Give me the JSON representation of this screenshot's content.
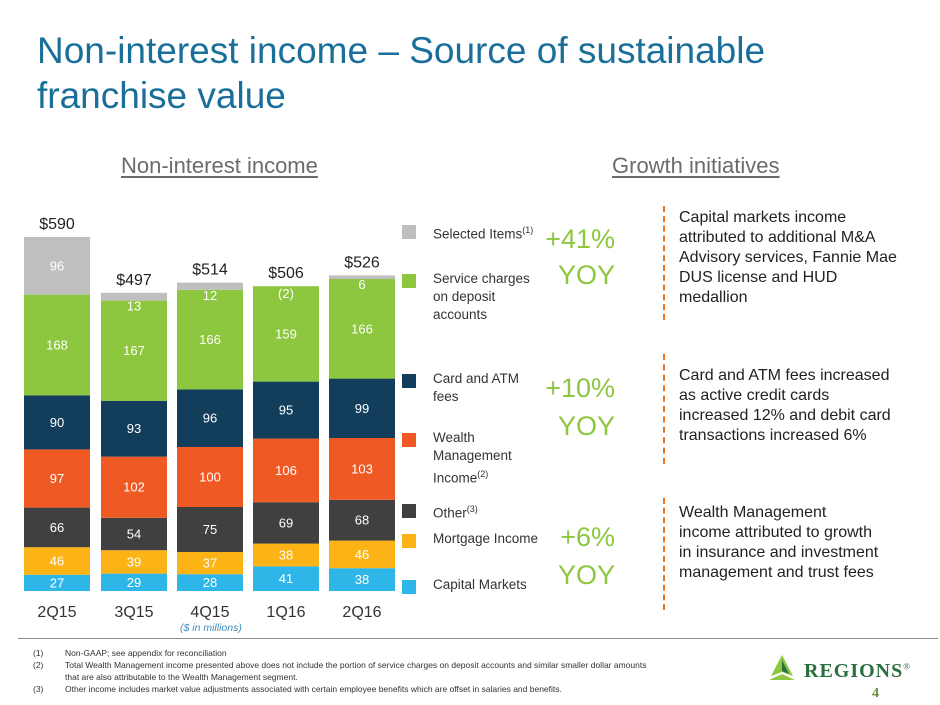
{
  "title": "Non-interest income – Source of sustainable franchise value",
  "left_heading": "Non-interest income",
  "right_heading": "Growth initiatives",
  "units_note": "($ in millions)",
  "legend": [
    {
      "label": "Selected Items",
      "sup": "(1)",
      "color": "#bfbfbf"
    },
    {
      "label": "Service charges on deposit accounts",
      "sup": "",
      "color": "#8dc63f"
    },
    {
      "label": "Card and ATM fees",
      "sup": "",
      "color": "#123e5c"
    },
    {
      "label": "Wealth Management Income",
      "sup": "(2)",
      "color": "#ef5a24"
    },
    {
      "label": "Other",
      "sup": "(3)",
      "color": "#404040"
    },
    {
      "label": "Mortgage Income",
      "sup": "",
      "color": "#fbb316"
    },
    {
      "label": "Capital Markets",
      "sup": "",
      "color": "#2fb6e8"
    }
  ],
  "chart_data": {
    "type": "bar",
    "stacked": true,
    "categories": [
      "2Q15",
      "3Q15",
      "4Q15",
      "1Q16",
      "2Q16"
    ],
    "totals": [
      "$590",
      "$497",
      "$514",
      "$506",
      "$526"
    ],
    "series": [
      {
        "name": "Capital Markets",
        "color": "#2fb6e8",
        "values": [
          27,
          29,
          28,
          41,
          38
        ],
        "labels": [
          "27",
          "29",
          "28",
          "41",
          "38"
        ]
      },
      {
        "name": "Mortgage Income",
        "color": "#fbb316",
        "values": [
          46,
          39,
          37,
          38,
          46
        ],
        "labels": [
          "46",
          "39",
          "37",
          "38",
          "46"
        ]
      },
      {
        "name": "Other",
        "color": "#404040",
        "values": [
          66,
          54,
          75,
          69,
          68
        ],
        "labels": [
          "66",
          "54",
          "75",
          "69",
          "68"
        ]
      },
      {
        "name": "Wealth Management Income",
        "color": "#ef5a24",
        "values": [
          97,
          102,
          100,
          106,
          103
        ],
        "labels": [
          "97",
          "102",
          "100",
          "106",
          "103"
        ]
      },
      {
        "name": "Card and ATM fees",
        "color": "#123e5c",
        "values": [
          90,
          93,
          96,
          95,
          99
        ],
        "labels": [
          "90",
          "93",
          "96",
          "95",
          "99"
        ]
      },
      {
        "name": "Service charges on deposit accounts",
        "color": "#8dc63f",
        "values": [
          168,
          167,
          166,
          159,
          166
        ],
        "labels": [
          "168",
          "167",
          "166",
          "159",
          "166"
        ]
      },
      {
        "name": "Selected Items",
        "color": "#bfbfbf",
        "values": [
          96,
          13,
          12,
          -2,
          6
        ],
        "labels": [
          "96",
          "13",
          "12",
          "(2)",
          "6"
        ]
      }
    ],
    "ylim": [
      0,
      600
    ]
  },
  "initiatives": [
    {
      "pct": "+41%",
      "yoy": "YOY",
      "text": "Capital markets income attributed to additional M&A Advisory services, Fannie Mae DUS license and HUD medallion"
    },
    {
      "pct": "+10%",
      "yoy": "YOY",
      "text": "Card and ATM fees increased as active credit cards increased 12% and debit card transactions increased 6%"
    },
    {
      "pct": "+6%",
      "yoy": "YOY",
      "text": "Wealth Management income attributed to growth in insurance and investment management and trust fees"
    }
  ],
  "footnotes": [
    {
      "num": "(1)",
      "text": "Non-GAAP; see appendix for reconciliation"
    },
    {
      "num": "(2)",
      "text": "Total Wealth Management income presented above does not include the portion of service charges on deposit accounts and similar smaller dollar amounts that are also attributable to the Wealth Management segment."
    },
    {
      "num": "(3)",
      "text": "Other income includes market value adjustments associated with certain employee benefits which are offset in salaries and benefits."
    }
  ],
  "logo_text": "REGIONS",
  "logo_mark": "®",
  "page_number": "4"
}
